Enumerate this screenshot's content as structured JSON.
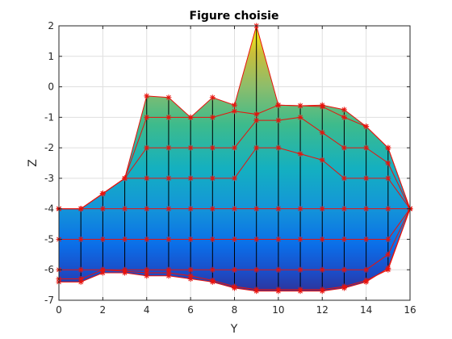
{
  "chart_data": {
    "type": "area",
    "title": "Figure choisie",
    "xlabel": "Y",
    "ylabel": "Z",
    "xlim": [
      0,
      16
    ],
    "ylim": [
      -7,
      2
    ],
    "xticks": [
      0,
      2,
      4,
      6,
      8,
      10,
      12,
      14,
      16
    ],
    "yticks": [
      2,
      1,
      0,
      -1,
      -2,
      -3,
      -4,
      -5,
      -6,
      -7
    ],
    "grid": true,
    "colormap": "parula",
    "colors": {
      "line": "#e8120c",
      "marker": "#e8120c",
      "mesh": "#000000",
      "axis": "#262626",
      "grid": "#dfdfdf"
    },
    "x": [
      0,
      1,
      2,
      3,
      4,
      5,
      6,
      7,
      8,
      9,
      10,
      11,
      12,
      13,
      14,
      15,
      16
    ],
    "series": [
      {
        "values": [
          -4.0,
          -4.0,
          -3.5,
          -3.0,
          -0.3,
          -0.35,
          -1.0,
          -0.35,
          -0.6,
          2.0,
          -0.6,
          -0.62,
          -0.6,
          -0.75,
          -1.3,
          -2.0,
          -4.0
        ]
      },
      {
        "values": [
          -4.0,
          -4.0,
          -3.5,
          -3.0,
          -1.0,
          -1.0,
          -1.0,
          -1.0,
          -0.8,
          -0.9,
          -0.6,
          -0.62,
          -0.65,
          -1.0,
          -1.3,
          -2.0,
          -4.0
        ]
      },
      {
        "values": [
          -4.0,
          -4.0,
          -3.5,
          -3.0,
          -2.0,
          -2.0,
          -2.0,
          -2.0,
          -2.0,
          -1.1,
          -1.1,
          -1.0,
          -1.5,
          -2.0,
          -2.0,
          -2.5,
          -4.0
        ]
      },
      {
        "values": [
          -4.0,
          -4.0,
          -3.5,
          -3.0,
          -3.0,
          -3.0,
          -3.0,
          -3.0,
          -3.0,
          -2.0,
          -2.0,
          -2.2,
          -2.4,
          -3.0,
          -3.0,
          -3.0,
          -4.0
        ]
      },
      {
        "values": [
          -4.0,
          -4.0,
          -4.0,
          -4.0,
          -4.0,
          -4.0,
          -4.0,
          -4.0,
          -4.0,
          -4.0,
          -4.0,
          -4.0,
          -4.0,
          -4.0,
          -4.0,
          -4.0,
          -4.0
        ]
      },
      {
        "values": [
          -5.0,
          -5.0,
          -5.0,
          -5.0,
          -5.0,
          -5.0,
          -5.0,
          -5.0,
          -5.0,
          -5.0,
          -5.0,
          -5.0,
          -5.0,
          -5.0,
          -5.0,
          -5.0,
          -4.0
        ]
      },
      {
        "values": [
          -6.0,
          -6.0,
          -6.0,
          -6.0,
          -6.0,
          -6.0,
          -6.0,
          -6.0,
          -6.0,
          -6.0,
          -6.0,
          -6.0,
          -6.0,
          -6.0,
          -6.0,
          -5.5,
          -4.0
        ]
      },
      {
        "values": [
          -6.3,
          -6.3,
          -6.0,
          -6.05,
          -6.1,
          -6.1,
          -6.2,
          -6.35,
          -6.55,
          -6.65,
          -6.65,
          -6.65,
          -6.65,
          -6.55,
          -6.35,
          -6.0,
          -4.0
        ]
      },
      {
        "values": [
          -6.4,
          -6.4,
          -6.1,
          -6.1,
          -6.2,
          -6.2,
          -6.3,
          -6.4,
          -6.6,
          -6.7,
          -6.7,
          -6.7,
          -6.7,
          -6.6,
          -6.4,
          -5.95,
          -4.0
        ]
      }
    ]
  }
}
